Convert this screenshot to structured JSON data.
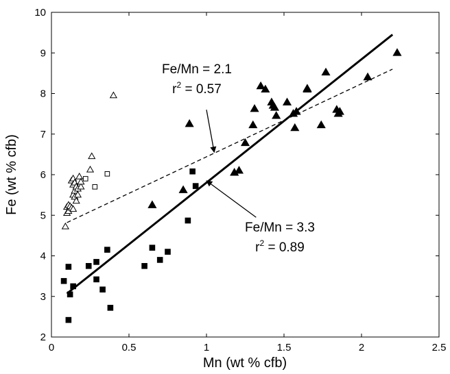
{
  "chart_data": {
    "type": "scatter",
    "title": "",
    "xlabel": "Mn (wt % cfb)",
    "ylabel": "Fe (wt % cfb)",
    "xlim": [
      0,
      2.5
    ],
    "ylim": [
      2,
      10
    ],
    "x_ticks": [
      "0",
      "0.5",
      "1",
      "1.5",
      "2",
      "2.5"
    ],
    "y_ticks": [
      "2",
      "3",
      "4",
      "5",
      "6",
      "7",
      "8",
      "9",
      "10"
    ],
    "grid": false,
    "series": [
      {
        "marker": "filled-triangle",
        "points": [
          [
            0.65,
            5.25
          ],
          [
            0.85,
            5.62
          ],
          [
            0.89,
            7.25
          ],
          [
            1.18,
            6.05
          ],
          [
            1.21,
            6.1
          ],
          [
            1.25,
            6.78
          ],
          [
            1.3,
            7.22
          ],
          [
            1.31,
            7.62
          ],
          [
            1.35,
            8.18
          ],
          [
            1.38,
            8.1
          ],
          [
            1.42,
            7.78
          ],
          [
            1.43,
            7.7
          ],
          [
            1.44,
            7.65
          ],
          [
            1.45,
            7.45
          ],
          [
            1.52,
            7.78
          ],
          [
            1.56,
            7.5
          ],
          [
            1.57,
            7.15
          ],
          [
            1.58,
            7.55
          ],
          [
            1.65,
            8.12
          ],
          [
            1.65,
            8.1
          ],
          [
            1.74,
            7.22
          ],
          [
            1.77,
            8.52
          ],
          [
            1.84,
            7.6
          ],
          [
            1.85,
            7.5
          ],
          [
            1.86,
            7.55
          ],
          [
            2.04,
            8.4
          ],
          [
            2.23,
            9.0
          ]
        ]
      },
      {
        "marker": "filled-square",
        "points": [
          [
            0.08,
            3.38
          ],
          [
            0.11,
            2.42
          ],
          [
            0.11,
            3.73
          ],
          [
            0.12,
            3.05
          ],
          [
            0.14,
            3.25
          ],
          [
            0.24,
            3.75
          ],
          [
            0.29,
            3.85
          ],
          [
            0.29,
            3.42
          ],
          [
            0.33,
            3.17
          ],
          [
            0.36,
            4.15
          ],
          [
            0.38,
            2.72
          ],
          [
            0.6,
            3.75
          ],
          [
            0.65,
            4.2
          ],
          [
            0.7,
            3.9
          ],
          [
            0.75,
            4.1
          ],
          [
            0.88,
            4.87
          ],
          [
            0.91,
            6.08
          ],
          [
            0.93,
            5.72
          ]
        ]
      },
      {
        "marker": "open-triangle",
        "points": [
          [
            0.09,
            4.72
          ],
          [
            0.1,
            5.05
          ],
          [
            0.1,
            5.2
          ],
          [
            0.11,
            5.25
          ],
          [
            0.11,
            5.1
          ],
          [
            0.12,
            5.22
          ],
          [
            0.13,
            5.18
          ],
          [
            0.14,
            5.15
          ],
          [
            0.13,
            5.85
          ],
          [
            0.14,
            5.9
          ],
          [
            0.14,
            5.75
          ],
          [
            0.14,
            5.5
          ],
          [
            0.15,
            5.6
          ],
          [
            0.15,
            5.45
          ],
          [
            0.15,
            5.8
          ],
          [
            0.16,
            5.7
          ],
          [
            0.16,
            5.35
          ],
          [
            0.17,
            5.65
          ],
          [
            0.17,
            5.5
          ],
          [
            0.18,
            5.95
          ],
          [
            0.19,
            5.7
          ],
          [
            0.19,
            5.82
          ],
          [
            0.25,
            6.12
          ],
          [
            0.26,
            6.45
          ],
          [
            0.4,
            7.95
          ]
        ]
      },
      {
        "marker": "open-square",
        "points": [
          [
            0.22,
            5.9
          ],
          [
            0.28,
            5.7
          ],
          [
            0.36,
            6.02
          ]
        ]
      }
    ],
    "fit_lines": [
      {
        "style": "solid",
        "from": [
          0.1,
          3.07
        ],
        "to": [
          2.2,
          9.45
        ]
      },
      {
        "style": "dashed",
        "from": [
          0.1,
          4.82
        ],
        "to": [
          2.2,
          8.6
        ]
      }
    ],
    "annotations": [
      {
        "line1": "Fe/Mn = 2.1",
        "line2_base": "r",
        "line2_sup": "2",
        "line2_rest": " = 0.57",
        "arrow_from": [
          1.0,
          7.6
        ],
        "arrow_to": [
          1.05,
          6.55
        ]
      },
      {
        "line1": "Fe/Mn = 3.3",
        "line2_base": "r",
        "line2_sup": "2",
        "line2_rest": " = 0.89",
        "arrow_from": [
          1.32,
          4.95
        ],
        "arrow_to": [
          1.0,
          5.85
        ]
      }
    ]
  }
}
